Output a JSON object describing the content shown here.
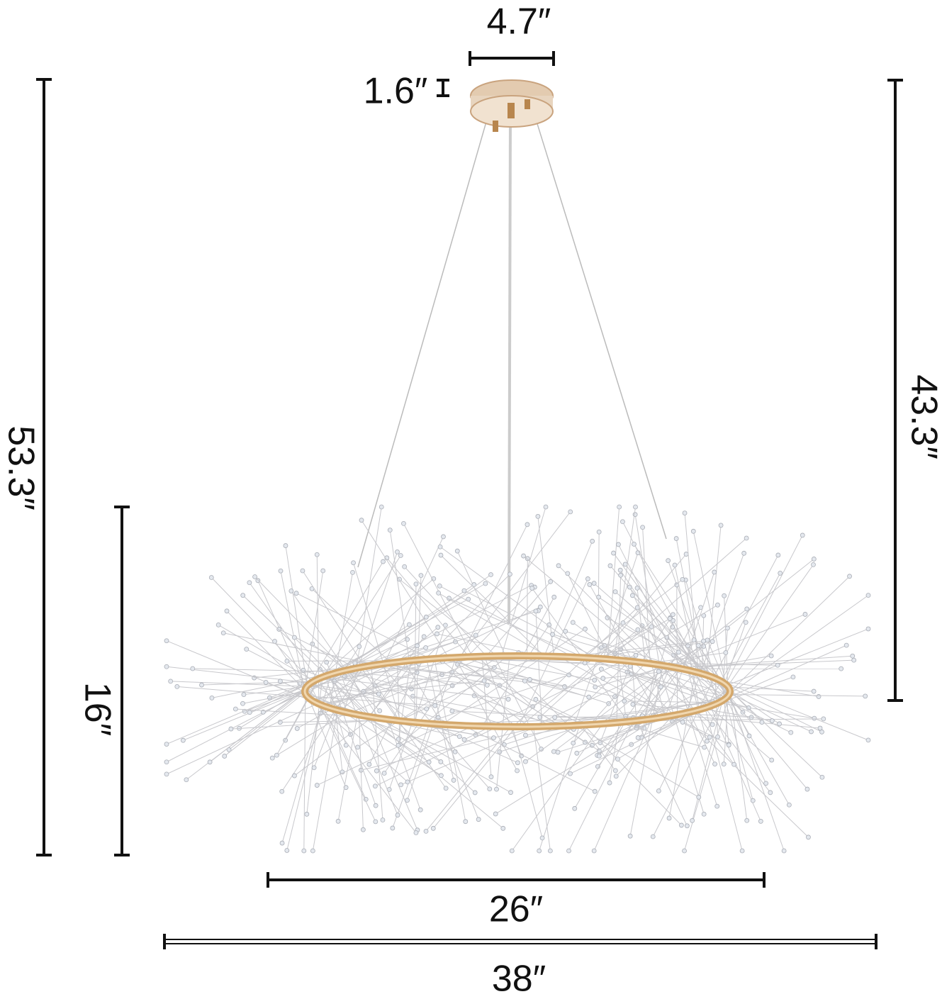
{
  "dimensions": {
    "canopy_width": "4.7″",
    "canopy_height": "1.6″",
    "max_height": "53.3″",
    "cable_length": "43.3″",
    "body_height": "16″",
    "ring_diameter": "26″",
    "overall_diameter": "38″"
  }
}
